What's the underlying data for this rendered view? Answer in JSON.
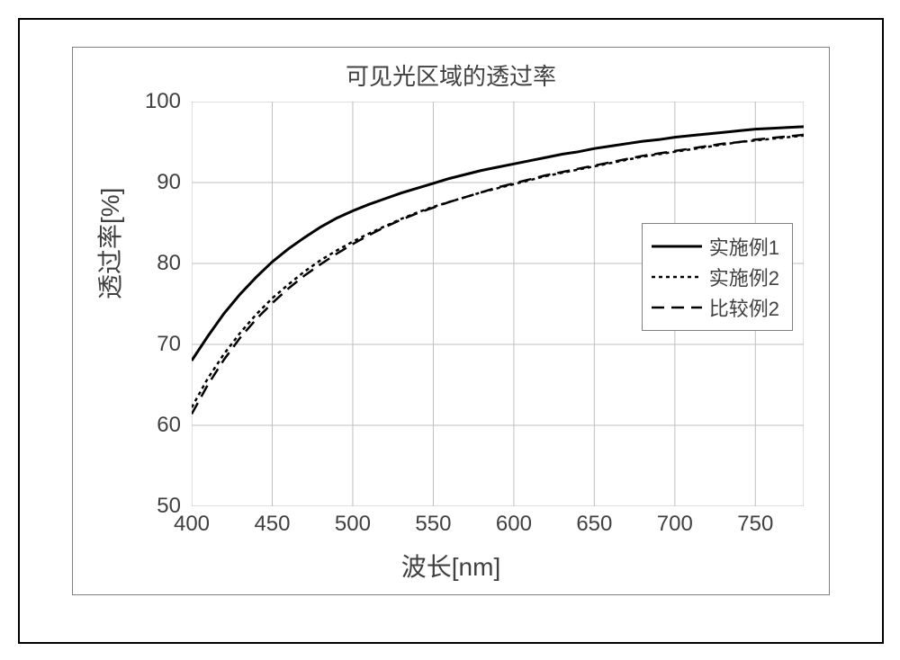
{
  "chart": {
    "type": "line",
    "title": "可见光区域的透过率",
    "x_axis": {
      "label": "波长[nm]",
      "min": 400,
      "max": 780,
      "tick_step": 50,
      "ticks": [
        400,
        450,
        500,
        550,
        600,
        650,
        700,
        750
      ],
      "label_fontsize": 28,
      "tick_fontsize": 24
    },
    "y_axis": {
      "label": "透过率[%]",
      "min": 50,
      "max": 100,
      "tick_step": 10,
      "ticks": [
        50,
        60,
        70,
        80,
        90,
        100
      ],
      "label_fontsize": 28,
      "tick_fontsize": 24
    },
    "grid": true,
    "grid_color": "#bfbfbf",
    "background_color": "#ffffff",
    "border_color": "#808080",
    "title_fontsize": 26,
    "title_color": "#404040",
    "series": [
      {
        "name": "实施例1",
        "color": "#000000",
        "line_width": 3,
        "dash": "solid",
        "x": [
          400,
          410,
          420,
          430,
          440,
          450,
          460,
          470,
          480,
          490,
          500,
          510,
          520,
          530,
          540,
          550,
          560,
          570,
          580,
          590,
          600,
          610,
          620,
          630,
          640,
          650,
          660,
          670,
          680,
          690,
          700,
          710,
          720,
          730,
          740,
          750,
          760,
          770,
          780
        ],
        "y": [
          68.0,
          71.0,
          73.8,
          76.2,
          78.3,
          80.2,
          81.8,
          83.2,
          84.5,
          85.6,
          86.5,
          87.3,
          88.0,
          88.7,
          89.3,
          89.9,
          90.5,
          91.0,
          91.5,
          91.9,
          92.3,
          92.7,
          93.1,
          93.5,
          93.8,
          94.2,
          94.5,
          94.8,
          95.1,
          95.3,
          95.6,
          95.8,
          96.0,
          96.2,
          96.4,
          96.6,
          96.7,
          96.8,
          96.9
        ]
      },
      {
        "name": "实施例2",
        "color": "#000000",
        "line_width": 2.5,
        "dash": "4 4",
        "x": [
          400,
          410,
          420,
          430,
          440,
          450,
          460,
          470,
          480,
          490,
          500,
          510,
          520,
          530,
          540,
          550,
          560,
          570,
          580,
          590,
          600,
          610,
          620,
          630,
          640,
          650,
          660,
          670,
          680,
          690,
          700,
          710,
          720,
          730,
          740,
          750,
          760,
          770,
          780
        ],
        "y": [
          62.2,
          65.8,
          68.8,
          71.4,
          73.7,
          75.7,
          77.4,
          79.0,
          80.4,
          81.6,
          82.7,
          83.7,
          84.6,
          85.5,
          86.3,
          87.0,
          87.6,
          88.2,
          88.8,
          89.3,
          89.8,
          90.3,
          90.8,
          91.2,
          91.6,
          92.0,
          92.4,
          92.8,
          93.2,
          93.5,
          93.8,
          94.1,
          94.4,
          94.7,
          95.0,
          95.2,
          95.4,
          95.6,
          95.8
        ]
      },
      {
        "name": "比较例2",
        "color": "#000000",
        "line_width": 2.5,
        "dash": "14 8",
        "x": [
          400,
          410,
          420,
          430,
          440,
          450,
          460,
          470,
          480,
          490,
          500,
          510,
          520,
          530,
          540,
          550,
          560,
          570,
          580,
          590,
          600,
          610,
          620,
          630,
          640,
          650,
          660,
          670,
          680,
          690,
          700,
          710,
          720,
          730,
          740,
          750,
          760,
          770,
          780
        ],
        "y": [
          61.4,
          65.0,
          68.1,
          70.8,
          73.1,
          75.1,
          76.9,
          78.5,
          79.9,
          81.2,
          82.4,
          83.5,
          84.5,
          85.4,
          86.2,
          86.9,
          87.6,
          88.2,
          88.8,
          89.4,
          89.9,
          90.4,
          90.9,
          91.3,
          91.7,
          92.1,
          92.5,
          92.9,
          93.3,
          93.6,
          93.9,
          94.2,
          94.5,
          94.8,
          95.0,
          95.3,
          95.5,
          95.7,
          95.9
        ]
      }
    ],
    "legend": {
      "position": "right-middle",
      "border_color": "#808080",
      "background_color": "#ffffff",
      "fontsize": 22
    }
  }
}
